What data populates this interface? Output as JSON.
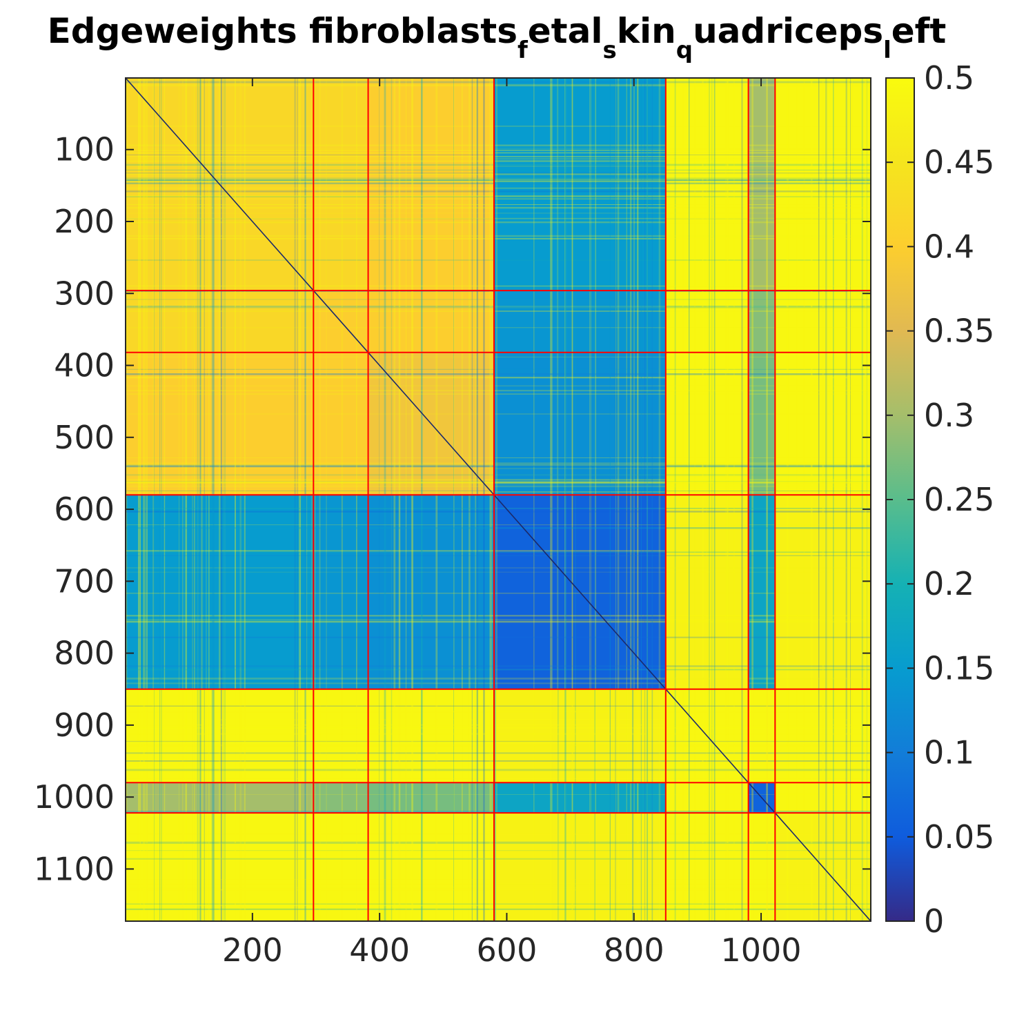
{
  "chart_data": {
    "type": "heatmap",
    "title": {
      "parts": [
        {
          "text": "Edgeweights fibroblasts",
          "sub": false
        },
        {
          "text": "f",
          "sub": true
        },
        {
          "text": "etal",
          "sub": false
        },
        {
          "text": "s",
          "sub": true
        },
        {
          "text": "kin",
          "sub": false
        },
        {
          "text": "q",
          "sub": true
        },
        {
          "text": "uadriceps",
          "sub": false
        },
        {
          "text": "l",
          "sub": true
        },
        {
          "text": "eft",
          "sub": false
        }
      ]
    },
    "n": 1172,
    "xlim": [
      1,
      1172
    ],
    "ylim": [
      1,
      1172
    ],
    "x_ticks": [
      200,
      400,
      600,
      800,
      1000
    ],
    "y_ticks": [
      100,
      200,
      300,
      400,
      500,
      600,
      700,
      800,
      900,
      1000,
      1100
    ],
    "colorbar": {
      "range": [
        0,
        0.5
      ],
      "ticks": [
        "0",
        "0.05",
        "0.1",
        "0.15",
        "0.2",
        "0.25",
        "0.3",
        "0.35",
        "0.4",
        "0.45",
        "0.5"
      ],
      "colormap": "parula"
    },
    "cluster_boundaries": [
      296,
      382,
      580,
      850,
      980,
      1022
    ],
    "block_values": [
      [
        0.42,
        0.42,
        0.4,
        0.15,
        0.49,
        0.3,
        0.49
      ],
      [
        0.42,
        0.4,
        0.4,
        0.14,
        0.49,
        0.28,
        0.49
      ],
      [
        0.4,
        0.4,
        0.38,
        0.13,
        0.49,
        0.27,
        0.49
      ],
      [
        0.15,
        0.14,
        0.13,
        0.06,
        0.48,
        0.17,
        0.48
      ],
      [
        0.49,
        0.49,
        0.49,
        0.48,
        0.49,
        0.49,
        0.49
      ],
      [
        0.3,
        0.28,
        0.27,
        0.17,
        0.49,
        0.06,
        0.49
      ],
      [
        0.49,
        0.49,
        0.49,
        0.48,
        0.49,
        0.49,
        0.48
      ]
    ],
    "colors": {
      "boundary": "#ff0000",
      "diagonal": "#1b2a6b",
      "axis": "#262626"
    }
  }
}
